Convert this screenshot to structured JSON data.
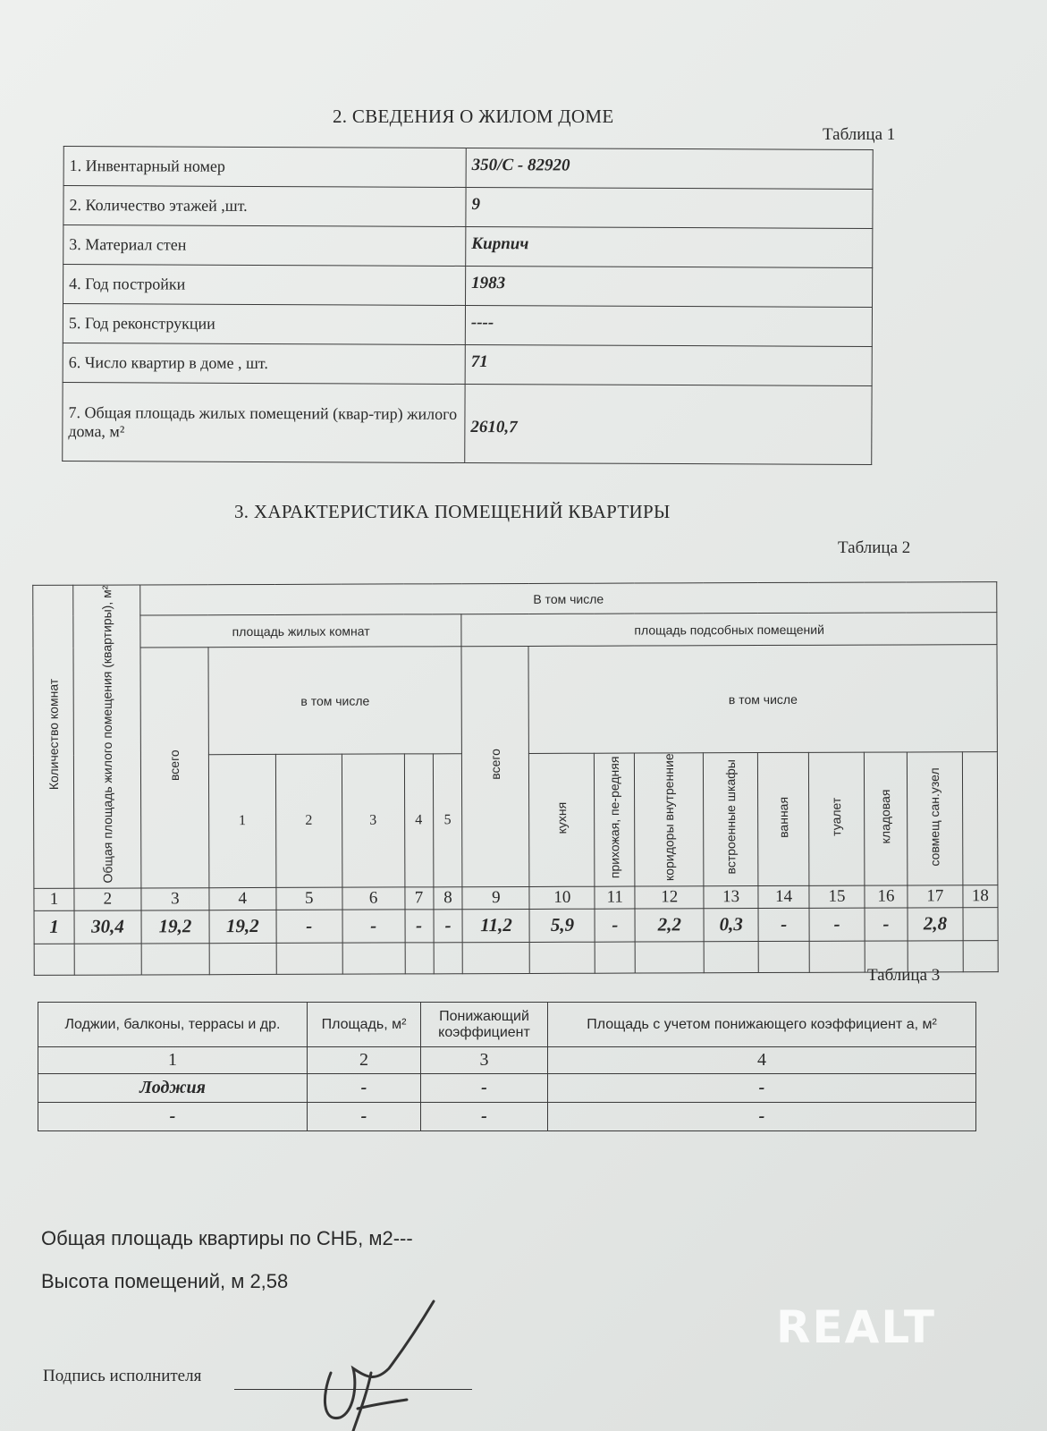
{
  "section2": {
    "title": "2. СВЕДЕНИЯ О ЖИЛОМ ДОМЕ",
    "table_caption": "Таблица 1",
    "rows": [
      {
        "label": "1. Инвентарный номер",
        "value": "350/С - 82920"
      },
      {
        "label": "2. Количество этажей ,шт.",
        "value": "9"
      },
      {
        "label": "3. Материал стен",
        "value": "Кирпич"
      },
      {
        "label": "4. Год постройки",
        "value": "1983"
      },
      {
        "label": "5. Год реконструкции",
        "value": "----"
      },
      {
        "label": "6. Число квартир в доме , шт.",
        "value": "71"
      },
      {
        "label": "7. Общая площадь жилых помещений (квар-тир) жилого дома, м²",
        "value": "2610,7"
      }
    ]
  },
  "section3": {
    "title": "3. ХАРАКТЕРИСТИКА ПОМЕЩЕНИЙ КВАРТИРЫ",
    "table_caption": "Таблица 2",
    "headers": {
      "rooms_count": "Количество комнат",
      "total_area": "Общая площадь жилого помещения (квартиры), м²",
      "including": "В том числе",
      "living_area": "площадь жилых комнат",
      "aux_area": "площадь подсобных помещений",
      "total": "всего",
      "incl": "в том числе",
      "rooms": [
        "1",
        "2",
        "3",
        "4",
        "5"
      ],
      "aux": [
        "кухня",
        "прихожая, пе-редняя",
        "коридоры внутренние",
        "встроенные шкафы",
        "ванная",
        "туалет",
        "кладовая",
        "совмещ сан.узел",
        ""
      ]
    },
    "column_numbers": [
      "1",
      "2",
      "3",
      "4",
      "5",
      "6",
      "7",
      "8",
      "9",
      "10",
      "11",
      "12",
      "13",
      "14",
      "15",
      "16",
      "17",
      "18"
    ],
    "values": [
      "1",
      "30,4",
      "19,2",
      "19,2",
      "-",
      "-",
      "-",
      "-",
      "11,2",
      "5,9",
      "-",
      "2,2",
      "0,3",
      "-",
      "-",
      "-",
      "2,8",
      ""
    ]
  },
  "table3": {
    "caption": "Таблица 3",
    "headers": [
      "Лоджии, балконы, террасы и др.",
      "Площадь, м²",
      "Понижающий коэффициент",
      "Площадь с учетом понижающего коэффициент а, м²"
    ],
    "column_numbers": [
      "1",
      "2",
      "3",
      "4"
    ],
    "rows": [
      [
        "Лоджия",
        "-",
        "-",
        "-"
      ],
      [
        "-",
        "-",
        "-",
        "-"
      ]
    ]
  },
  "footer": {
    "total_snb": "Общая площадь квартиры  по СНБ, м2---",
    "height": "Высота помещений, м 2,58",
    "signature_label": "Подпись исполнителя"
  },
  "watermark": "REALT"
}
